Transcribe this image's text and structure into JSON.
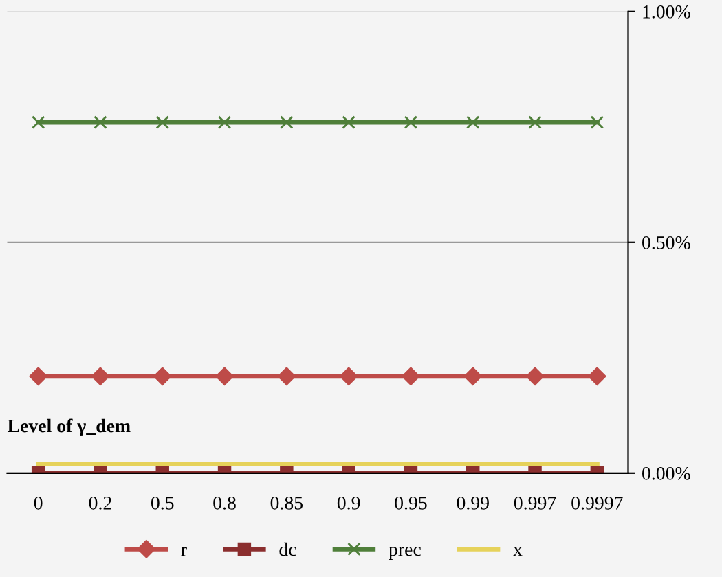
{
  "chart_data": {
    "type": "line",
    "categories": [
      "0",
      "0.2",
      "0.5",
      "0.8",
      "0.85",
      "0.9",
      "0.95",
      "0.99",
      "0.997",
      "0.9997"
    ],
    "series": [
      {
        "name": "r",
        "color": "#be4b48",
        "marker": "diamond",
        "values": [
          0.21,
          0.21,
          0.21,
          0.21,
          0.21,
          0.21,
          0.21,
          0.21,
          0.21,
          0.21
        ]
      },
      {
        "name": "dc",
        "color": "#8b2e2e",
        "marker": "square",
        "values": [
          0.0,
          0.0,
          0.0,
          0.0,
          0.0,
          0.0,
          0.0,
          0.0,
          0.0,
          0.0
        ]
      },
      {
        "name": "prec",
        "color": "#4f7f3a",
        "marker": "cross",
        "values": [
          0.76,
          0.76,
          0.76,
          0.76,
          0.76,
          0.76,
          0.76,
          0.76,
          0.76,
          0.76
        ]
      },
      {
        "name": "x",
        "color": "#e6d25a",
        "marker": "none",
        "values": [
          0.02,
          0.02,
          0.02,
          0.02,
          0.02,
          0.02,
          0.02,
          0.02,
          0.02,
          0.02
        ]
      }
    ],
    "annotations": [
      "Level of γ_dem"
    ],
    "ylim": [
      0,
      1
    ],
    "yticks": [
      {
        "value": 0,
        "label": "0.00%"
      },
      {
        "value": 0.5,
        "label": "0.50%"
      },
      {
        "value": 1,
        "label": "1.00%"
      }
    ],
    "grid": "y",
    "legend": "bottom"
  }
}
